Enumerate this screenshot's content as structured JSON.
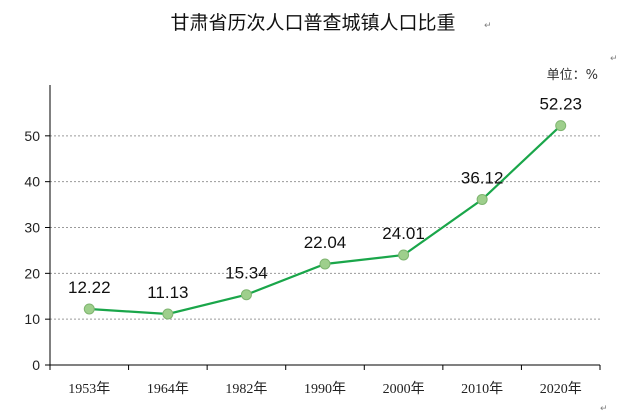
{
  "chart_data": {
    "type": "line",
    "title": "甘肃省历次人口普查城镇人口比重",
    "title_mark": "↵",
    "unit_label": "单位：%",
    "categories": [
      "1953年",
      "1964年",
      "1982年",
      "1990年",
      "2000年",
      "2010年",
      "2020年"
    ],
    "series": [
      {
        "values": [
          12.22,
          11.13,
          15.34,
          22.04,
          24.01,
          36.12,
          52.23
        ],
        "labels": [
          "12.22",
          "11.13",
          "15.34",
          "22.04",
          "24.01",
          "36.12",
          "52.23"
        ]
      }
    ],
    "yticks": [
      "0",
      "10",
      "20",
      "30",
      "40",
      "50"
    ],
    "ylim": [
      0,
      60
    ],
    "grid": true,
    "colors": {
      "line": "#1aa64a",
      "marker": "#9ecf8c"
    }
  }
}
